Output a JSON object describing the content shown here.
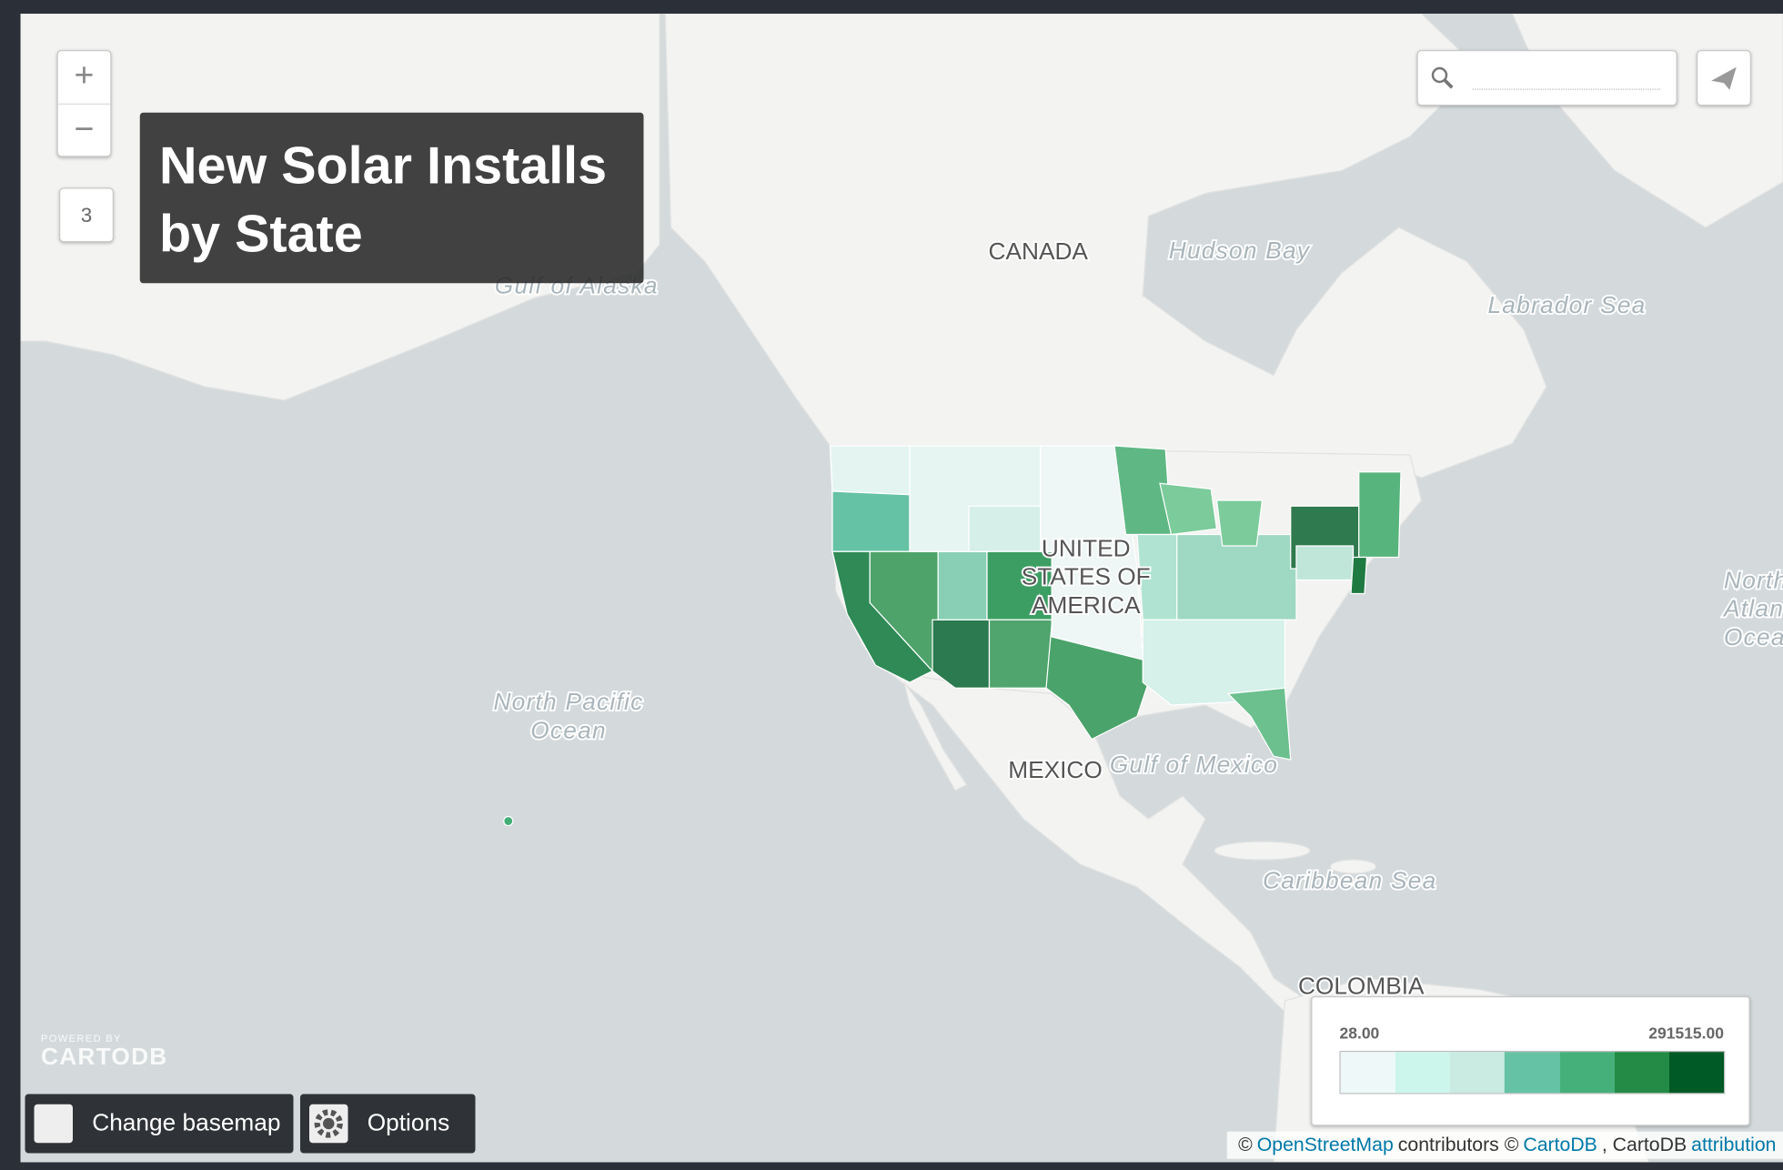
{
  "title": "New Solar Installs by State",
  "zoom": {
    "in": "+",
    "out": "−",
    "level": "3"
  },
  "map_labels": [
    {
      "lines": [
        "CANADA"
      ],
      "kind": "country"
    },
    {
      "lines": [
        "Hudson Bay"
      ],
      "kind": "water"
    },
    {
      "lines": [
        "Labrador Sea"
      ],
      "kind": "water"
    },
    {
      "lines": [
        "Gulf of Alaska"
      ],
      "kind": "water"
    },
    {
      "lines": [
        "UNITED",
        "STATES OF",
        "AMERICA"
      ],
      "kind": "country"
    },
    {
      "lines": [
        "North Pacific",
        "Ocean"
      ],
      "kind": "water"
    },
    {
      "lines": [
        "MEXICO"
      ],
      "kind": "country"
    },
    {
      "lines": [
        "Gulf of Mexico"
      ],
      "kind": "water"
    },
    {
      "lines": [
        "Caribbean Sea"
      ],
      "kind": "water"
    },
    {
      "lines": [
        "COLOMBIA"
      ],
      "kind": "country"
    },
    {
      "lines": [
        "North",
        "Atlantic",
        "Ocean"
      ],
      "kind": "water"
    }
  ],
  "legend": {
    "min": "28.00",
    "max": "291515.00",
    "colors": [
      "#eef8f9",
      "#ccf5ec",
      "#c9ebe2",
      "#66c2a4",
      "#46b07a",
      "#238b45",
      "#005a26"
    ]
  },
  "buttons": {
    "basemap": "Change basemap",
    "options": "Options"
  },
  "powered_by": {
    "small": "POWERED BY",
    "brand": "CARTODB"
  },
  "attribution": [
    {
      "text": "©",
      "link": false
    },
    {
      "text": "OpenStreetMap",
      "link": true
    },
    {
      "text": "contributors ©",
      "link": false
    },
    {
      "text": "CartoDB",
      "link": true
    },
    {
      "text": ", CartoDB",
      "link": false
    },
    {
      "text": "attribution",
      "link": true
    }
  ]
}
